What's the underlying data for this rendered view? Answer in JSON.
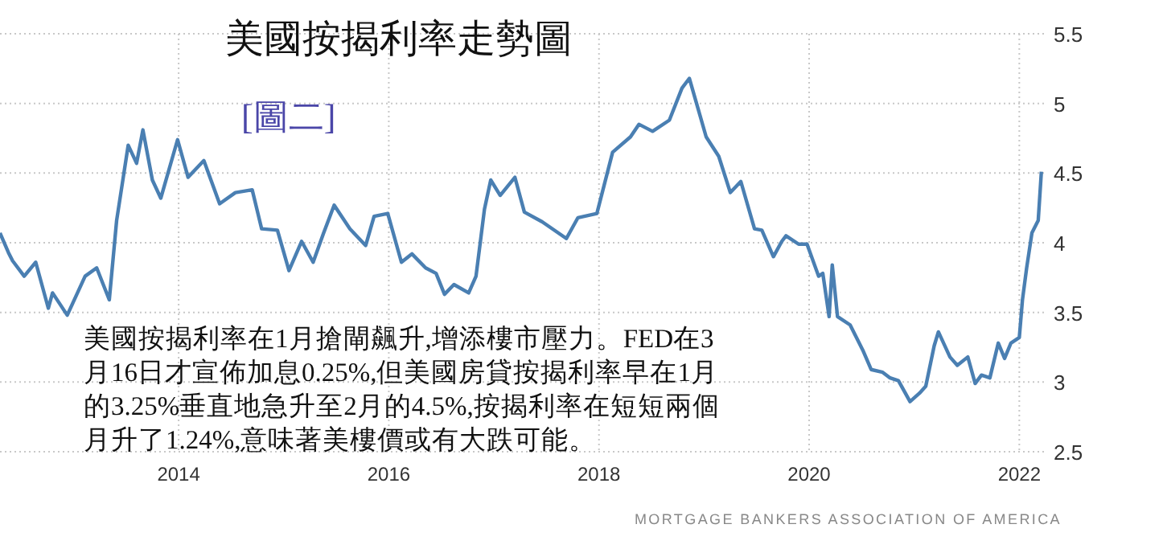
{
  "chart_data": {
    "type": "line",
    "title": "美國按揭利率走勢圖",
    "subtitle": "[圖二]",
    "annotations": [
      "美國按揭利率在1月搶閘飆升,增添樓市壓力。FED在3月16日才宣佈加息0.25%,但美國房貸按揭利率早在1月的3.25%垂直地急升至2月的4.5%,按揭利率在短短兩個月升了1.24%,意味著美樓價或有大跌可能。",
      "MORTGAGE BANKERS ASSOCIATION OF AMERICA"
    ],
    "x": [
      2012.3,
      2012.38,
      2012.42,
      2012.53,
      2012.64,
      2012.76,
      2012.8,
      2012.94,
      2013.11,
      2013.22,
      2013.34,
      2013.41,
      2013.52,
      2013.6,
      2013.66,
      2013.75,
      2013.83,
      2013.99,
      2014.09,
      2014.24,
      2014.39,
      2014.54,
      2014.7,
      2014.79,
      2014.94,
      2015.05,
      2015.17,
      2015.28,
      2015.38,
      2015.48,
      2015.63,
      2015.78,
      2015.86,
      2015.99,
      2016.12,
      2016.22,
      2016.35,
      2016.45,
      2016.53,
      2016.62,
      2016.76,
      2016.83,
      2016.91,
      2016.97,
      2017.06,
      2017.2,
      2017.29,
      2017.46,
      2017.69,
      2017.8,
      2017.98,
      2018.13,
      2018.3,
      2018.38,
      2018.51,
      2018.67,
      2018.79,
      2018.86,
      2018.94,
      2019.02,
      2019.14,
      2019.25,
      2019.35,
      2019.48,
      2019.55,
      2019.66,
      2019.74,
      2019.78,
      2019.9,
      2019.98,
      2020.09,
      2020.13,
      2020.19,
      2020.22,
      2020.27,
      2020.39,
      2020.51,
      2020.59,
      2020.7,
      2020.77,
      2020.85,
      2020.96,
      2021.05,
      2021.11,
      2021.19,
      2021.23,
      2021.34,
      2021.41,
      2021.51,
      2021.58,
      2021.64,
      2021.72,
      2021.8,
      2021.86,
      2021.92,
      2022.0,
      2022.03,
      2022.07,
      2022.12,
      2022.18,
      2022.21
    ],
    "values": [
      4.07,
      3.93,
      3.87,
      3.76,
      3.86,
      3.53,
      3.64,
      3.48,
      3.76,
      3.82,
      3.59,
      4.16,
      4.7,
      4.57,
      4.81,
      4.45,
      4.32,
      4.74,
      4.47,
      4.59,
      4.28,
      4.36,
      4.38,
      4.1,
      4.09,
      3.8,
      4.01,
      3.86,
      4.07,
      4.27,
      4.1,
      3.98,
      4.19,
      4.21,
      3.86,
      3.92,
      3.82,
      3.78,
      3.63,
      3.7,
      3.64,
      3.76,
      4.24,
      4.45,
      4.34,
      4.47,
      4.22,
      4.15,
      4.03,
      4.18,
      4.21,
      4.65,
      4.76,
      4.85,
      4.8,
      4.88,
      5.11,
      5.18,
      4.97,
      4.76,
      4.62,
      4.36,
      4.44,
      4.1,
      4.09,
      3.9,
      4.01,
      4.05,
      3.99,
      3.99,
      3.76,
      3.78,
      3.47,
      3.84,
      3.47,
      3.41,
      3.23,
      3.09,
      3.07,
      3.03,
      3.01,
      2.86,
      2.92,
      2.97,
      3.26,
      3.36,
      3.18,
      3.12,
      3.18,
      2.99,
      3.05,
      3.03,
      3.28,
      3.17,
      3.28,
      3.32,
      3.59,
      3.82,
      4.07,
      4.16,
      4.51
    ],
    "color": "#4a7fb2",
    "xlim": [
      2012.3,
      2022.25
    ],
    "xticks": [
      2014,
      2016,
      2018,
      2020,
      2022
    ],
    "ylim": [
      2.5,
      5.5
    ],
    "yticks": [
      2.5,
      3,
      3.5,
      4,
      4.5,
      5,
      5.5
    ],
    "grid": true
  }
}
